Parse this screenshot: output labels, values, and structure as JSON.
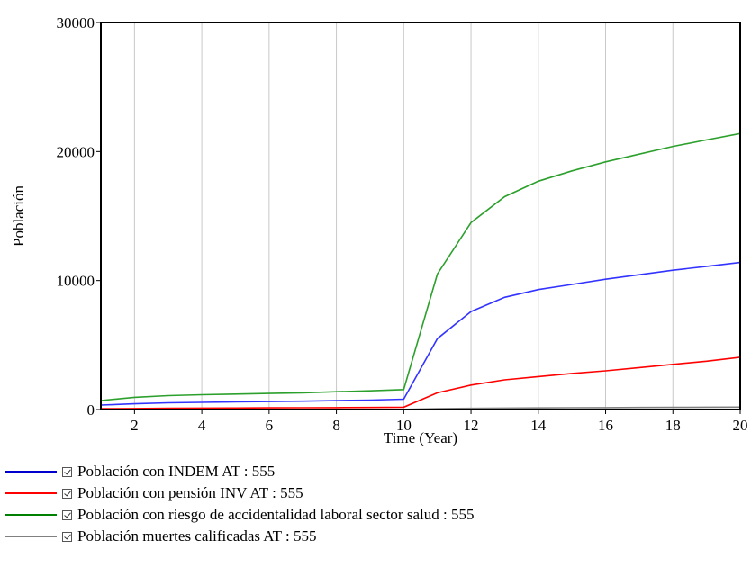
{
  "chart_data": {
    "type": "line",
    "xlabel": "Time (Year)",
    "ylabel": "Población",
    "xlim": [
      1,
      20
    ],
    "ylim": [
      0,
      30000
    ],
    "x_ticks": [
      2,
      4,
      6,
      8,
      10,
      12,
      14,
      16,
      18,
      20
    ],
    "y_ticks": [
      0,
      10000,
      20000,
      30000
    ],
    "grid": true,
    "legend_position": "bottom",
    "x": [
      1,
      2,
      3,
      4,
      5,
      6,
      7,
      8,
      9,
      10,
      11,
      12,
      13,
      14,
      15,
      16,
      17,
      18,
      19,
      20
    ],
    "series": [
      {
        "name": "Población con riesgo de accidentalidad laboral sector salud : 555",
        "color": "#2ca02c",
        "values": [
          700,
          950,
          1080,
          1150,
          1200,
          1250,
          1300,
          1380,
          1450,
          1550,
          10500,
          14500,
          16500,
          17700,
          18500,
          19200,
          19800,
          20400,
          20900,
          21400
        ]
      },
      {
        "name": "Población con INDEM AT : 555",
        "color": "#3333ff",
        "values": [
          350,
          450,
          520,
          560,
          590,
          620,
          650,
          690,
          730,
          800,
          5500,
          7600,
          8700,
          9300,
          9700,
          10100,
          10450,
          10800,
          11100,
          11400
        ]
      },
      {
        "name": "Población con pensión INV AT : 555",
        "color": "#ff0000",
        "values": [
          60,
          80,
          100,
          110,
          120,
          130,
          140,
          150,
          160,
          180,
          1300,
          1900,
          2300,
          2550,
          2800,
          3000,
          3250,
          3500,
          3750,
          4050
        ]
      },
      {
        "name": "Población muertes calificadas AT : 555",
        "color": "#808080",
        "values": [
          5,
          6,
          7,
          8,
          9,
          10,
          11,
          12,
          13,
          14,
          60,
          90,
          110,
          125,
          140,
          150,
          160,
          170,
          180,
          190
        ]
      }
    ]
  },
  "legend": {
    "items": [
      {
        "label": "Población con INDEM AT : 555",
        "color": "#0000cc"
      },
      {
        "label": "Población con pensión INV AT : 555",
        "color": "#ff0000"
      },
      {
        "label": "Población con riesgo de accidentalidad laboral sector salud : 555",
        "color": "#008000"
      },
      {
        "label": "Población muertes calificadas AT : 555",
        "color": "#808080"
      }
    ]
  }
}
